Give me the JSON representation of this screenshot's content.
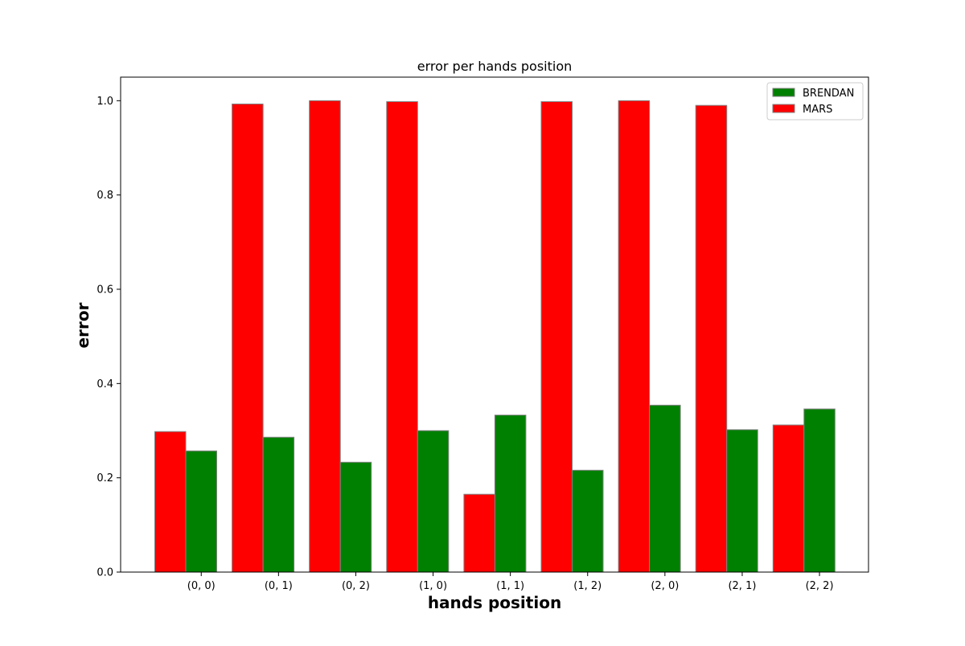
{
  "chart_data": {
    "type": "bar",
    "title": "error per hands position",
    "xlabel": "hands position",
    "ylabel": "error",
    "categories": [
      "(0, 0)",
      "(0, 1)",
      "(0, 2)",
      "(1, 0)",
      "(1, 1)",
      "(1, 2)",
      "(2, 0)",
      "(2, 1)",
      "(2, 2)"
    ],
    "series": [
      {
        "name": "MARS",
        "color": "#ff0000",
        "values": [
          0.298,
          0.993,
          1.0,
          0.998,
          0.165,
          0.998,
          1.0,
          0.99,
          0.312
        ]
      },
      {
        "name": "BRENDAN",
        "color": "#008000",
        "values": [
          0.257,
          0.286,
          0.233,
          0.3,
          0.333,
          0.216,
          0.354,
          0.302,
          0.346
        ]
      }
    ],
    "legend_order": [
      "BRENDAN",
      "MARS"
    ],
    "legend_position": "top-right",
    "ylim": [
      0,
      1.05
    ],
    "yticks": [
      0.0,
      0.2,
      0.4,
      0.6,
      0.8,
      1.0
    ],
    "ytick_labels": [
      "0.0",
      "0.2",
      "0.4",
      "0.6",
      "0.8",
      "1.0"
    ],
    "grid": false,
    "bar_edge_color": "#808080"
  }
}
